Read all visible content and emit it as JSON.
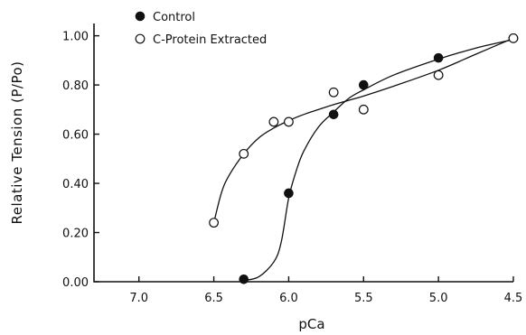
{
  "chart_data": {
    "type": "scatter",
    "title": "",
    "xlabel": "pCa",
    "ylabel": "Relative Tension (P/Po)",
    "x_reversed": true,
    "xlim": [
      7.3,
      4.5
    ],
    "ylim": [
      0.0,
      1.05
    ],
    "x_ticks": [
      7.0,
      6.5,
      6.0,
      5.5,
      5.0,
      4.5
    ],
    "x_tick_labels": [
      "7.0",
      "6.5",
      "6.0",
      "5.5",
      "5.0",
      "4.5"
    ],
    "y_ticks": [
      0.0,
      0.2,
      0.4,
      0.6,
      0.8,
      1.0
    ],
    "y_tick_labels": [
      "0.00",
      "0.20",
      "0.40",
      "0.60",
      "0.80",
      "1.00"
    ],
    "grid": false,
    "legend_position": "top-left",
    "series": [
      {
        "name": "Control",
        "marker": "filled-circle",
        "x": [
          6.3,
          6.0,
          5.7,
          5.5,
          5.0,
          4.5
        ],
        "y": [
          0.01,
          0.36,
          0.68,
          0.8,
          0.91,
          0.99
        ],
        "curve_x": [
          6.3,
          6.2,
          6.1,
          6.05,
          6.0,
          5.95,
          5.9,
          5.8,
          5.7,
          5.6,
          5.5,
          5.3,
          5.0,
          4.75,
          4.5
        ],
        "curve_y": [
          0.005,
          0.02,
          0.08,
          0.16,
          0.34,
          0.45,
          0.53,
          0.63,
          0.69,
          0.745,
          0.78,
          0.84,
          0.905,
          0.95,
          0.985
        ]
      },
      {
        "name": "C-Protein Extracted",
        "marker": "open-circle",
        "x": [
          6.5,
          6.3,
          6.1,
          6.0,
          5.7,
          5.5,
          5.0,
          4.5
        ],
        "y": [
          0.24,
          0.52,
          0.65,
          0.65,
          0.77,
          0.7,
          0.84,
          0.99
        ],
        "curve_x": [
          6.5,
          6.45,
          6.4,
          6.3,
          6.2,
          6.1,
          6.0,
          5.9,
          5.8,
          5.7,
          5.5,
          5.3,
          5.0,
          4.75,
          4.5
        ],
        "curve_y": [
          0.24,
          0.36,
          0.43,
          0.52,
          0.585,
          0.625,
          0.655,
          0.68,
          0.7,
          0.72,
          0.755,
          0.795,
          0.86,
          0.925,
          0.99
        ]
      }
    ]
  }
}
